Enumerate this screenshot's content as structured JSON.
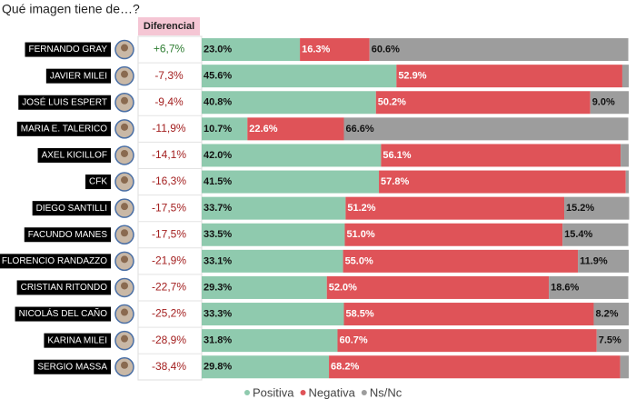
{
  "chart_data": {
    "type": "stacked-hbar",
    "title": "Qué imagen tiene de…?",
    "differential_header": "Diferencial",
    "categories": [
      "FERNANDO GRAY",
      "JAVIER MILEI",
      "JOSÉ LUIS ESPERT",
      "MARIA E. TALERICO",
      "AXEL KICILLOF",
      "CFK",
      "DIEGO SANTILLI",
      "FACUNDO MANES",
      "FLORENCIO RANDAZZO",
      "CRISTIAN RITONDO",
      "NICOLÁS DEL CAÑO",
      "KARINA MILEI",
      "SERGIO MASSA"
    ],
    "differential": {
      "values": [
        6.7,
        -7.3,
        -9.4,
        -11.9,
        -14.1,
        -16.3,
        -17.5,
        -17.5,
        -21.9,
        -22.7,
        -25.2,
        -28.9,
        -38.4
      ],
      "value_labels": [
        "+6,7%",
        "-7,3%",
        "-9,4%",
        "-11,9%",
        "-14,1%",
        "-16,3%",
        "-17,5%",
        "-17,5%",
        "-21,9%",
        "-22,7%",
        "-25,2%",
        "-28,9%",
        "-38,4%"
      ],
      "positive_color": "#2e7d32",
      "negative_color": "#a31f1f"
    },
    "xlim": [
      0,
      100
    ],
    "series": [
      {
        "name": "Positiva",
        "color": "#8fcaae",
        "label_color": "#111111",
        "values": [
          23.0,
          45.6,
          40.8,
          10.7,
          42.0,
          41.5,
          33.7,
          33.5,
          33.1,
          29.3,
          33.3,
          31.8,
          29.8
        ],
        "value_labels": [
          "23.0%",
          "45.6%",
          "40.8%",
          "10.7%",
          "42.0%",
          "41.5%",
          "33.7%",
          "33.5%",
          "33.1%",
          "29.3%",
          "33.3%",
          "31.8%",
          "29.8%"
        ]
      },
      {
        "name": "Negativa",
        "color": "#df5358",
        "label_color": "#ffffff",
        "values": [
          16.3,
          52.9,
          50.2,
          22.6,
          56.1,
          57.8,
          51.2,
          51.0,
          55.0,
          52.0,
          58.5,
          60.7,
          68.2
        ],
        "value_labels": [
          "16.3%",
          "52.9%",
          "50.2%",
          "22.6%",
          "56.1%",
          "57.8%",
          "51.2%",
          "51.0%",
          "55.0%",
          "52.0%",
          "58.5%",
          "60.7%",
          "68.2%"
        ]
      },
      {
        "name": "Ns/Nc",
        "color": "#9d9d9d",
        "label_color": "#111111",
        "values": [
          60.6,
          1.5,
          9.0,
          66.6,
          1.9,
          0.7,
          15.2,
          15.4,
          11.9,
          18.6,
          8.2,
          7.5,
          2.0
        ],
        "value_labels": [
          "60.6%",
          null,
          "9.0%",
          "66.6%",
          null,
          null,
          "15.2%",
          "15.4%",
          "11.9%",
          "18.6%",
          "8.2%",
          "7.5%",
          null
        ]
      }
    ]
  }
}
